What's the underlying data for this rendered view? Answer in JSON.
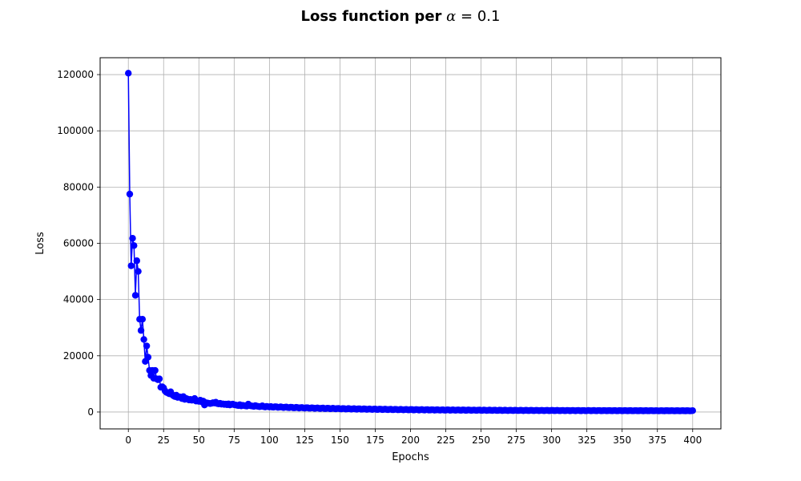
{
  "chart_data": {
    "type": "line",
    "title": "Loss function per",
    "title_math_symbol": "α",
    "title_math_eq": " = 0.1",
    "xlabel": "Epochs",
    "ylabel": "Loss",
    "xlim": [
      -20,
      420
    ],
    "ylim": [
      -6000,
      126000
    ],
    "xticks": [
      0,
      25,
      50,
      75,
      100,
      125,
      150,
      175,
      200,
      225,
      250,
      275,
      300,
      325,
      350,
      375,
      400
    ],
    "yticks": [
      0,
      20000,
      40000,
      60000,
      80000,
      100000,
      120000
    ],
    "grid": true,
    "line_color": "#0000ff",
    "marker": "circle",
    "head_values": [
      120500,
      77500,
      52000,
      61800,
      59200,
      41500,
      53800,
      50000,
      33000,
      29000,
      33000,
      25800,
      18000,
      23500,
      19500,
      14800,
      13000,
      14800,
      12000,
      14800,
      11800,
      11500,
      11800,
      8800,
      9000,
      8600,
      7500,
      7000,
      6800,
      6500,
      7200,
      6200,
      5800,
      5500,
      6000,
      5200,
      5400,
      5300,
      4800,
      5500,
      4500,
      4800,
      4600,
      4300,
      4500,
      4200,
      4400,
      4800,
      3900,
      4000,
      3800,
      4200,
      3600,
      3900,
      2500,
      3300,
      3200,
      3100,
      3000,
      3100,
      3300,
      3200,
      3500,
      3000,
      2900,
      3100,
      2800,
      2900,
      2700,
      2800,
      2600,
      2900,
      2500,
      2700,
      2800,
      2600,
      2500,
      2400,
      2300,
      2600,
      2200,
      2400,
      2300,
      2200,
      2100,
      2800,
      2300,
      2200,
      2100,
      2000,
      2300,
      2100,
      2000,
      1900,
      2000,
      2200,
      1900,
      1800,
      2000,
      1900,
      1800
    ],
    "tail_start": 100,
    "tail_start_value": 1800,
    "tail_end_value": 450,
    "x_end": 400
  }
}
